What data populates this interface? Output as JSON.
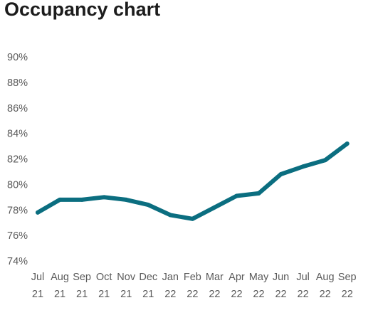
{
  "title": "Occupancy chart",
  "chart_data": {
    "type": "line",
    "title": "Occupancy chart",
    "xlabel": "",
    "ylabel": "",
    "ylim": [
      74,
      90
    ],
    "grid": false,
    "color": "#0b6e80",
    "y_ticks": [
      "90%",
      "88%",
      "86%",
      "84%",
      "82%",
      "80%",
      "78%",
      "76%",
      "74%"
    ],
    "categories": [
      {
        "month": "Jul",
        "year": "21"
      },
      {
        "month": "Aug",
        "year": "21"
      },
      {
        "month": "Sep",
        "year": "21"
      },
      {
        "month": "Oct",
        "year": "21"
      },
      {
        "month": "Nov",
        "year": "21"
      },
      {
        "month": "Dec",
        "year": "21"
      },
      {
        "month": "Jan",
        "year": "22"
      },
      {
        "month": "Feb",
        "year": "22"
      },
      {
        "month": "Mar",
        "year": "22"
      },
      {
        "month": "Apr",
        "year": "22"
      },
      {
        "month": "May",
        "year": "22"
      },
      {
        "month": "Jun",
        "year": "22"
      },
      {
        "month": "Jul",
        "year": "22"
      },
      {
        "month": "Aug",
        "year": "22"
      },
      {
        "month": "Sep",
        "year": "22"
      }
    ],
    "series": [
      {
        "name": "",
        "values": [
          77.8,
          78.8,
          78.8,
          79.0,
          78.8,
          78.4,
          77.6,
          77.3,
          78.2,
          79.1,
          79.3,
          80.8,
          81.4,
          81.9,
          83.2
        ]
      }
    ]
  }
}
